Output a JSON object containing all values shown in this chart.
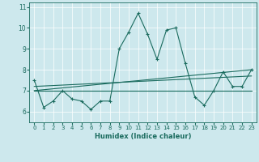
{
  "xlabel": "Humidex (Indice chaleur)",
  "xlim": [
    -0.5,
    23.5
  ],
  "ylim": [
    5.5,
    11.2
  ],
  "yticks": [
    6,
    7,
    8,
    9,
    10,
    11
  ],
  "xticks": [
    0,
    1,
    2,
    3,
    4,
    5,
    6,
    7,
    8,
    9,
    10,
    11,
    12,
    13,
    14,
    15,
    16,
    17,
    18,
    19,
    20,
    21,
    22,
    23
  ],
  "bg_color": "#cde8ed",
  "line_color": "#1a6b5e",
  "series1_x": [
    0,
    1,
    2,
    3,
    4,
    5,
    6,
    7,
    8,
    9,
    10,
    11,
    12,
    13,
    14,
    15,
    16,
    17,
    18,
    19,
    20,
    21,
    22,
    23
  ],
  "series1_y": [
    7.5,
    6.2,
    6.5,
    7.0,
    6.6,
    6.5,
    6.1,
    6.5,
    6.5,
    9.0,
    9.8,
    10.7,
    9.7,
    8.5,
    9.9,
    10.0,
    8.3,
    6.7,
    6.3,
    7.0,
    7.9,
    7.2,
    7.2,
    8.0
  ],
  "series2_x": [
    0,
    23
  ],
  "series2_y": [
    7.0,
    7.0
  ],
  "series3_x": [
    0,
    23
  ],
  "series3_y": [
    7.0,
    8.0
  ],
  "series4_x": [
    0,
    23
  ],
  "series4_y": [
    7.2,
    7.7
  ],
  "xlabel_fontsize": 6,
  "tick_fontsize": 5,
  "linewidth": 0.8,
  "markersize": 3,
  "grid_color": "white",
  "grid_linewidth": 0.5
}
